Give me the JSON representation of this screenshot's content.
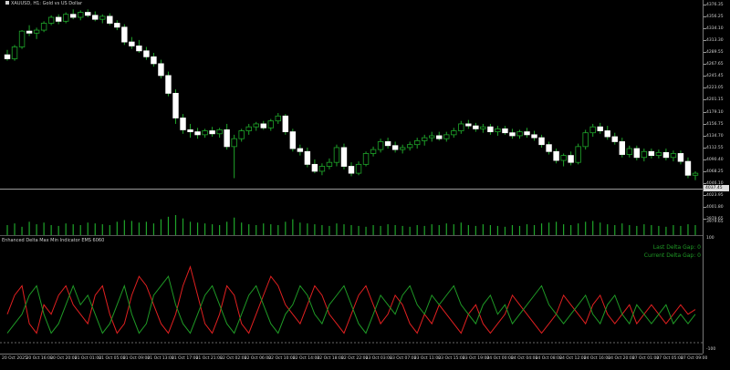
{
  "chart_header": {
    "symbol_text": "XAUUSD, H1:  Gold vs US Dollar"
  },
  "price_axis": {
    "labels": [
      "4376.35",
      "4356.25",
      "4334.10",
      "4313.30",
      "4289.55",
      "4267.65",
      "4245.45",
      "4223.05",
      "4201.15",
      "4179.10",
      "4156.75",
      "4134.70",
      "4112.55",
      "4090.40",
      "4068.25",
      "4046.10",
      "4023.95",
      "4001.80",
      "3979.65"
    ],
    "current_price_tag": "4037.45"
  },
  "chart_data": {
    "type": "candlestick",
    "ylim": [
      3970,
      4380
    ],
    "candles": [
      [
        4280,
        4290,
        4268,
        4272
      ],
      [
        4272,
        4300,
        4268,
        4296
      ],
      [
        4296,
        4330,
        4292,
        4328
      ],
      [
        4328,
        4340,
        4318,
        4324
      ],
      [
        4324,
        4335,
        4312,
        4330
      ],
      [
        4330,
        4348,
        4326,
        4344
      ],
      [
        4344,
        4360,
        4340,
        4356
      ],
      [
        4356,
        4362,
        4342,
        4348
      ],
      [
        4348,
        4366,
        4344,
        4362
      ],
      [
        4362,
        4372,
        4352,
        4356
      ],
      [
        4356,
        4370,
        4350,
        4366
      ],
      [
        4366,
        4372,
        4356,
        4360
      ],
      [
        4360,
        4368,
        4348,
        4352
      ],
      [
        4352,
        4362,
        4344,
        4358
      ],
      [
        4358,
        4364,
        4340,
        4344
      ],
      [
        4344,
        4350,
        4330,
        4336
      ],
      [
        4336,
        4342,
        4300,
        4306
      ],
      [
        4306,
        4316,
        4292,
        4298
      ],
      [
        4298,
        4310,
        4284,
        4288
      ],
      [
        4288,
        4296,
        4270,
        4276
      ],
      [
        4276,
        4284,
        4256,
        4262
      ],
      [
        4262,
        4270,
        4232,
        4238
      ],
      [
        4238,
        4246,
        4196,
        4202
      ],
      [
        4202,
        4210,
        4140,
        4152
      ],
      [
        4152,
        4160,
        4120,
        4128
      ],
      [
        4128,
        4140,
        4112,
        4124
      ],
      [
        4124,
        4132,
        4110,
        4118
      ],
      [
        4118,
        4130,
        4112,
        4126
      ],
      [
        4126,
        4134,
        4114,
        4120
      ],
      [
        4120,
        4132,
        4112,
        4128
      ],
      [
        4128,
        4140,
        4088,
        4094
      ],
      [
        4094,
        4118,
        4030,
        4110
      ],
      [
        4110,
        4130,
        4104,
        4126
      ],
      [
        4126,
        4140,
        4118,
        4134
      ],
      [
        4134,
        4144,
        4126,
        4140
      ],
      [
        4140,
        4146,
        4128,
        4132
      ],
      [
        4132,
        4150,
        4126,
        4146
      ],
      [
        4146,
        4162,
        4140,
        4156
      ],
      [
        4156,
        4160,
        4118,
        4124
      ],
      [
        4124,
        4130,
        4084,
        4090
      ],
      [
        4090,
        4098,
        4076,
        4084
      ],
      [
        4084,
        4092,
        4052,
        4058
      ],
      [
        4058,
        4068,
        4040,
        4044
      ],
      [
        4044,
        4060,
        4036,
        4054
      ],
      [
        4054,
        4070,
        4048,
        4062
      ],
      [
        4062,
        4098,
        4054,
        4092
      ],
      [
        4092,
        4100,
        4048,
        4054
      ],
      [
        4054,
        4062,
        4034,
        4040
      ],
      [
        4040,
        4064,
        4036,
        4058
      ],
      [
        4058,
        4084,
        4054,
        4080
      ],
      [
        4080,
        4094,
        4074,
        4088
      ],
      [
        4088,
        4110,
        4082,
        4104
      ],
      [
        4104,
        4112,
        4090,
        4096
      ],
      [
        4096,
        4104,
        4082,
        4088
      ],
      [
        4088,
        4098,
        4080,
        4092
      ],
      [
        4092,
        4104,
        4086,
        4098
      ],
      [
        4098,
        4112,
        4090,
        4106
      ],
      [
        4106,
        4118,
        4096,
        4112
      ],
      [
        4112,
        4124,
        4104,
        4116
      ],
      [
        4116,
        4124,
        4106,
        4110
      ],
      [
        4110,
        4124,
        4104,
        4118
      ],
      [
        4118,
        4132,
        4112,
        4126
      ],
      [
        4126,
        4146,
        4120,
        4140
      ],
      [
        4140,
        4148,
        4130,
        4136
      ],
      [
        4136,
        4142,
        4124,
        4130
      ],
      [
        4130,
        4140,
        4122,
        4134
      ],
      [
        4134,
        4140,
        4118,
        4124
      ],
      [
        4124,
        4136,
        4116,
        4130
      ],
      [
        4130,
        4136,
        4118,
        4122
      ],
      [
        4122,
        4130,
        4110,
        4116
      ],
      [
        4116,
        4128,
        4110,
        4124
      ],
      [
        4124,
        4132,
        4112,
        4118
      ],
      [
        4118,
        4126,
        4106,
        4112
      ],
      [
        4112,
        4118,
        4092,
        4098
      ],
      [
        4098,
        4104,
        4078,
        4084
      ],
      [
        4084,
        4090,
        4060,
        4066
      ],
      [
        4066,
        4080,
        4054,
        4076
      ],
      [
        4076,
        4084,
        4056,
        4062
      ],
      [
        4062,
        4100,
        4058,
        4094
      ],
      [
        4094,
        4128,
        4088,
        4122
      ],
      [
        4122,
        4140,
        4114,
        4134
      ],
      [
        4134,
        4142,
        4120,
        4126
      ],
      [
        4126,
        4136,
        4108,
        4114
      ],
      [
        4114,
        4122,
        4098,
        4104
      ],
      [
        4104,
        4112,
        4072,
        4078
      ],
      [
        4078,
        4096,
        4072,
        4090
      ],
      [
        4090,
        4096,
        4066,
        4072
      ],
      [
        4072,
        4090,
        4064,
        4084
      ],
      [
        4084,
        4090,
        4070,
        4076
      ],
      [
        4076,
        4088,
        4070,
        4082
      ],
      [
        4082,
        4090,
        4066,
        4072
      ],
      [
        4072,
        4086,
        4064,
        4080
      ],
      [
        4080,
        4086,
        4058,
        4064
      ],
      [
        4064,
        4072,
        4030,
        4036
      ],
      [
        4036,
        4044,
        4026,
        4040
      ]
    ],
    "volume": [
      12,
      14,
      10,
      16,
      13,
      15,
      12,
      11,
      14,
      13,
      12,
      15,
      14,
      13,
      12,
      16,
      18,
      17,
      15,
      16,
      14,
      19,
      22,
      24,
      20,
      16,
      15,
      14,
      13,
      12,
      16,
      21,
      15,
      13,
      12,
      14,
      13,
      12,
      16,
      19,
      15,
      14,
      13,
      12,
      11,
      14,
      13,
      12,
      11,
      10,
      12,
      11,
      13,
      12,
      11,
      10,
      12,
      11,
      13,
      12,
      14,
      13,
      15,
      12,
      11,
      13,
      12,
      11,
      10,
      12,
      11,
      13,
      12,
      14,
      15,
      16,
      13,
      12,
      14,
      16,
      17,
      15,
      13,
      12,
      14,
      12,
      11,
      13,
      12,
      11,
      10,
      12,
      11,
      13,
      12
    ],
    "indicator_red": [
      0.3,
      0.5,
      0.6,
      0.2,
      0.1,
      0.4,
      0.3,
      0.5,
      0.6,
      0.4,
      0.3,
      0.2,
      0.5,
      0.6,
      0.3,
      0.1,
      0.2,
      0.5,
      0.7,
      0.6,
      0.4,
      0.2,
      0.1,
      0.3,
      0.6,
      0.8,
      0.5,
      0.2,
      0.1,
      0.3,
      0.6,
      0.5,
      0.2,
      0.1,
      0.3,
      0.5,
      0.7,
      0.6,
      0.4,
      0.3,
      0.2,
      0.4,
      0.6,
      0.5,
      0.3,
      0.2,
      0.1,
      0.3,
      0.5,
      0.6,
      0.4,
      0.2,
      0.3,
      0.5,
      0.4,
      0.2,
      0.1,
      0.3,
      0.2,
      0.4,
      0.3,
      0.2,
      0.1,
      0.3,
      0.4,
      0.2,
      0.1,
      0.2,
      0.3,
      0.5,
      0.4,
      0.3,
      0.2,
      0.1,
      0.2,
      0.3,
      0.5,
      0.4,
      0.3,
      0.2,
      0.4,
      0.5,
      0.3,
      0.2,
      0.3,
      0.4,
      0.2,
      0.3,
      0.4,
      0.3,
      0.2,
      0.3,
      0.4,
      0.3,
      0.35
    ],
    "indicator_green": [
      0.1,
      0.2,
      0.3,
      0.5,
      0.6,
      0.3,
      0.1,
      0.2,
      0.4,
      0.6,
      0.4,
      0.5,
      0.3,
      0.1,
      0.2,
      0.4,
      0.6,
      0.3,
      0.1,
      0.2,
      0.5,
      0.6,
      0.7,
      0.4,
      0.2,
      0.1,
      0.3,
      0.5,
      0.6,
      0.4,
      0.2,
      0.1,
      0.3,
      0.5,
      0.6,
      0.4,
      0.2,
      0.1,
      0.3,
      0.4,
      0.6,
      0.5,
      0.3,
      0.2,
      0.4,
      0.5,
      0.6,
      0.4,
      0.2,
      0.1,
      0.3,
      0.5,
      0.4,
      0.3,
      0.5,
      0.6,
      0.4,
      0.3,
      0.5,
      0.4,
      0.5,
      0.6,
      0.4,
      0.3,
      0.2,
      0.4,
      0.5,
      0.3,
      0.4,
      0.2,
      0.3,
      0.4,
      0.5,
      0.6,
      0.4,
      0.3,
      0.2,
      0.3,
      0.4,
      0.5,
      0.3,
      0.2,
      0.4,
      0.5,
      0.3,
      0.2,
      0.4,
      0.3,
      0.2,
      0.3,
      0.4,
      0.2,
      0.3,
      0.2,
      0.3
    ]
  },
  "colors": {
    "bull": "#ffffff",
    "bear": "#ffffff",
    "wick": "#1fa52a",
    "volume": "#1fa52a",
    "indicator_red": "#e02020",
    "indicator_green": "#1f9a26"
  },
  "indicator": {
    "title": "Enhanced Delta Max Min Indicator EMS 6060",
    "axis_labels": [
      "100",
      ".00",
      "-100"
    ],
    "last_gap_label": "Last Delta Gap: 0",
    "current_gap_label": "Current Delta Gap: 0"
  },
  "volume_axis_label": "3979.65",
  "time_axis": {
    "labels": [
      "20 Oct 2025",
      "20 Oct 16:00",
      "20 Oct 20:00",
      "21 Oct 01:00",
      "21 Oct 05:00",
      "21 Oct 09:00",
      "21 Oct 13:00",
      "21 Oct 17:00",
      "21 Oct 21:00",
      "22 Oct 02:00",
      "22 Oct 06:00",
      "22 Oct 10:00",
      "22 Oct 14:00",
      "22 Oct 18:00",
      "22 Oct 22:00",
      "23 Oct 03:00",
      "23 Oct 07:00",
      "23 Oct 11:00",
      "23 Oct 15:00",
      "23 Oct 19:00",
      "24 Oct 00:00",
      "24 Oct 04:00",
      "24 Oct 08:00",
      "24 Oct 12:00",
      "24 Oct 16:00",
      "24 Oct 20:00",
      "27 Oct 01:00",
      "27 Oct 05:00",
      "27 Oct 09:00"
    ]
  }
}
